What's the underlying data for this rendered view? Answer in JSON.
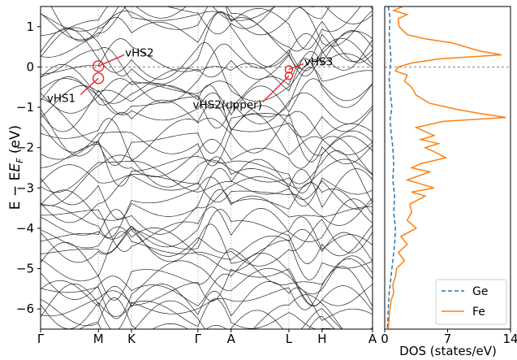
{
  "chart_data": [
    {
      "type": "line",
      "panel": "band-structure",
      "ylabel": "E − E",
      "ylabel_sub": "F",
      "ylabel_unit": " (eV)",
      "ylim": [
        -6.5,
        1.5
      ],
      "yticks": [
        1,
        0,
        -1,
        -2,
        -3,
        -4,
        -5,
        -6
      ],
      "kpath": [
        {
          "label": "Γ",
          "pos": 0.0
        },
        {
          "label": "M",
          "pos": 0.174
        },
        {
          "label": "K",
          "pos": 0.274
        },
        {
          "label": "Γ",
          "pos": 0.474
        },
        {
          "label": "A",
          "pos": 0.574
        },
        {
          "label": "L",
          "pos": 0.748
        },
        {
          "label": "H",
          "pos": 0.848
        },
        {
          "label": "A",
          "pos": 1.0
        }
      ],
      "fermi_level": 0,
      "grid": "vertical lines at high-symmetry points",
      "annotations": [
        {
          "text": "vHS1",
          "k": "M",
          "E": -0.28
        },
        {
          "text": "vHS2",
          "k": "M",
          "E": 0.02
        },
        {
          "text": "vHS3",
          "k": "L",
          "E": -0.06
        },
        {
          "text": "vHS2(upper)",
          "k": "L",
          "E": -0.22
        }
      ]
    },
    {
      "type": "line",
      "panel": "dos",
      "xlabel": "DOS (states/eV)",
      "xlim": [
        0,
        14
      ],
      "xticks": [
        0,
        7,
        14
      ],
      "ylim": [
        -6.5,
        1.5
      ],
      "legend": "bottom-right",
      "series": [
        {
          "name": "Ge",
          "style": "dashed",
          "color": "#1f77b4",
          "E": [
            1.5,
            1.2,
            0.8,
            0.5,
            0.2,
            0.0,
            -0.3,
            -0.6,
            -1.0,
            -1.3,
            -1.6,
            -2.0,
            -2.4,
            -2.8,
            -3.2,
            -3.6,
            -4.0,
            -4.4,
            -4.8,
            -5.2,
            -5.6,
            -6.0,
            -6.5
          ],
          "dos": [
            0.4,
            0.6,
            0.5,
            0.6,
            0.7,
            0.6,
            0.5,
            0.6,
            0.8,
            0.6,
            0.7,
            0.9,
            1.0,
            0.9,
            1.1,
            1.0,
            1.2,
            1.1,
            0.9,
            0.7,
            0.5,
            0.4,
            0.3
          ]
        },
        {
          "name": "Fe",
          "style": "solid",
          "color": "#ff7f0e",
          "E": [
            1.5,
            1.4,
            1.3,
            1.2,
            1.0,
            0.8,
            0.7,
            0.6,
            0.5,
            0.4,
            0.3,
            0.2,
            0.1,
            0.0,
            -0.1,
            -0.2,
            -0.35,
            -0.5,
            -0.7,
            -0.9,
            -1.05,
            -1.15,
            -1.25,
            -1.35,
            -1.5,
            -1.7,
            -1.8,
            -1.9,
            -2.0,
            -2.1,
            -2.25,
            -2.4,
            -2.5,
            -2.6,
            -2.8,
            -3.0,
            -3.1,
            -3.2,
            -3.4,
            -3.6,
            -3.8,
            -4.0,
            -4.2,
            -4.4,
            -4.6,
            -4.8,
            -5.0,
            -5.2,
            -5.4,
            -5.6,
            -5.8,
            -6.0,
            -6.2,
            -6.5
          ],
          "dos": [
            2.0,
            1.0,
            2.5,
            1.5,
            1.6,
            2.5,
            4.5,
            7.5,
            9.0,
            10.5,
            13.0,
            6.0,
            3.0,
            1.5,
            1.2,
            2.5,
            2.2,
            3.0,
            3.5,
            5.0,
            8.0,
            10.5,
            13.5,
            6.5,
            3.5,
            5.5,
            4.0,
            6.0,
            4.5,
            5.5,
            6.8,
            4.0,
            3.0,
            5.0,
            2.5,
            5.5,
            3.0,
            4.5,
            2.8,
            3.0,
            2.5,
            3.5,
            1.8,
            2.5,
            1.5,
            2.2,
            1.3,
            1.2,
            0.9,
            1.0,
            0.7,
            0.6,
            0.5,
            0.4
          ]
        }
      ]
    }
  ]
}
